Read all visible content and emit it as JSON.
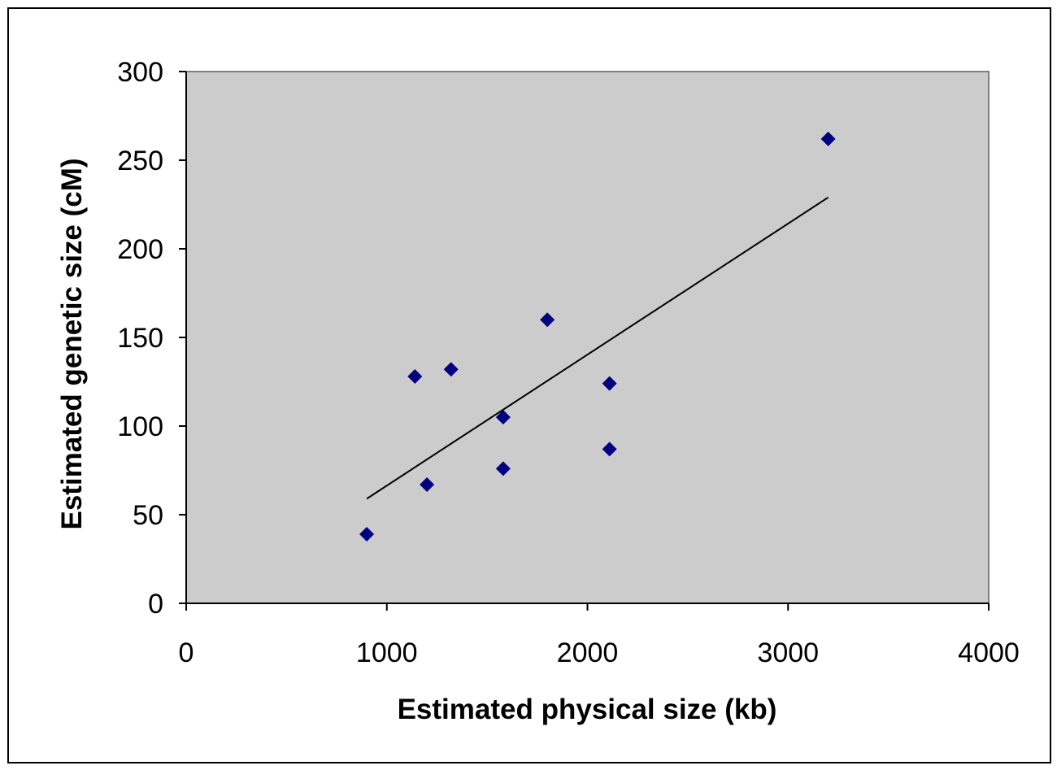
{
  "chart_data": {
    "type": "scatter",
    "xlabel": "Estimated physical size (kb)",
    "ylabel": "Estimated genetic size (cM)",
    "xlim": [
      0,
      4000
    ],
    "ylim": [
      0,
      300
    ],
    "xticks": [
      "0",
      "1000",
      "2000",
      "3000",
      "4000"
    ],
    "yticks": [
      "0",
      "50",
      "100",
      "150",
      "200",
      "250",
      "300"
    ],
    "grid": false,
    "legend": "none",
    "colors": {
      "plot_background": "#cccccc",
      "marker": "#000080",
      "trendline": "#000000"
    },
    "points": [
      {
        "x": 900,
        "y": 39
      },
      {
        "x": 1140,
        "y": 128
      },
      {
        "x": 1200,
        "y": 67
      },
      {
        "x": 1320,
        "y": 132
      },
      {
        "x": 1580,
        "y": 105
      },
      {
        "x": 1580,
        "y": 76
      },
      {
        "x": 1800,
        "y": 160
      },
      {
        "x": 2110,
        "y": 124
      },
      {
        "x": 2110,
        "y": 87
      },
      {
        "x": 3200,
        "y": 262
      }
    ],
    "trendline": {
      "type": "linear",
      "x": [
        900,
        3200
      ],
      "y": [
        59,
        229
      ]
    }
  }
}
